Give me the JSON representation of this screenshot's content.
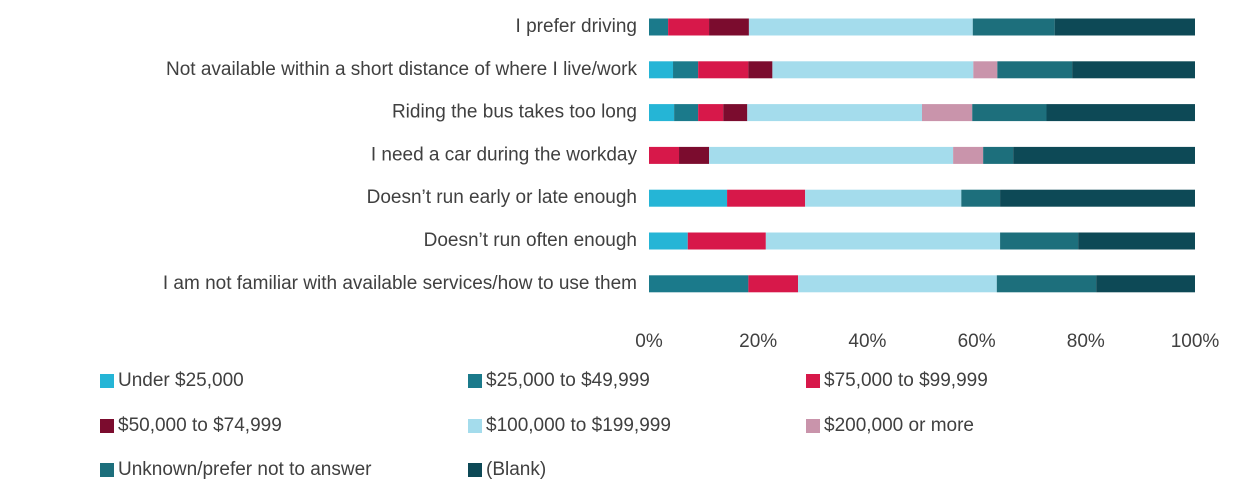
{
  "chart_data": {
    "type": "stacked-barh",
    "categories": [
      "I prefer driving",
      "Not available within a short distance of where I live/work",
      "Riding the bus takes too long",
      "I need a car during the workday",
      "Doesn’t run early or late enough",
      "Doesn’t run often enough",
      "I am not familiar with available services/how to use them"
    ],
    "series": [
      {
        "name": "Under $25,000",
        "color": "#25b5d6",
        "values": [
          0,
          4.4,
          4.6,
          0,
          14.3,
          7.1,
          0
        ]
      },
      {
        "name": "$25,000 to $49,999",
        "color": "#1b7a8b",
        "values": [
          3.5,
          4.6,
          4.4,
          0,
          0,
          0,
          18.2
        ]
      },
      {
        "name": "$75,000 to $99,999",
        "color": "#d7184a",
        "values": [
          7.5,
          9.2,
          4.6,
          5.5,
          14.3,
          14.3,
          9.1
        ]
      },
      {
        "name": "$50,000 to $74,999",
        "color": "#7b0c2e",
        "values": [
          7.3,
          4.4,
          4.4,
          5.5,
          0,
          0,
          0
        ]
      },
      {
        "name": "$100,000 to $199,999",
        "color": "#a4dcec",
        "values": [
          41,
          36.8,
          32,
          44.7,
          28.6,
          42.9,
          36.4
        ]
      },
      {
        "name": "$200,000 or more",
        "color": "#c994ab",
        "values": [
          0,
          4.4,
          9.2,
          5.5,
          0,
          0,
          0
        ]
      },
      {
        "name": "Unknown/prefer not to answer",
        "color": "#1d6f7c",
        "values": [
          15,
          13.7,
          13.6,
          5.5,
          7.1,
          14.3,
          18.2
        ]
      },
      {
        "name": "(Blank)",
        "color": "#0d4956",
        "values": [
          25.7,
          22.5,
          27.2,
          33.3,
          35.7,
          21.4,
          18.1
        ]
      }
    ],
    "xlim": [
      0,
      100
    ],
    "xticks": [
      {
        "value": 0,
        "label": "0%"
      },
      {
        "value": 20,
        "label": "20%"
      },
      {
        "value": 40,
        "label": "40%"
      },
      {
        "value": 60,
        "label": "60%"
      },
      {
        "value": 80,
        "label": "80%"
      },
      {
        "value": 100,
        "label": "100%"
      }
    ]
  }
}
